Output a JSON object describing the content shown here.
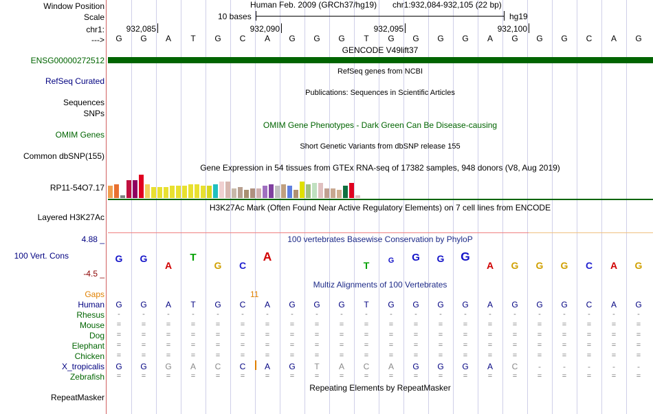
{
  "header": {
    "window_position_label": "Window Position",
    "scale_label": "Scale",
    "chr_label": "chr1:",
    "arrow_label": "--->",
    "assembly": "Human Feb. 2009 (GRCh37/hg19)",
    "position": "chr1:932,084-932,105 (22 bp)",
    "scale_text": "10 bases",
    "db": "hg19",
    "ticks": [
      "932,085",
      "932,090",
      "932,095",
      "932,100"
    ]
  },
  "sequence": [
    "G",
    "G",
    "A",
    "T",
    "G",
    "C",
    "A",
    "G",
    "G",
    "G",
    "T",
    "G",
    "G",
    "G",
    "G",
    "A",
    "G",
    "G",
    "G",
    "C",
    "A",
    "G"
  ],
  "tracks": {
    "gencode": {
      "title": "GENCODE V49lift37",
      "label": "ENSG00000272512",
      "color": "#006400"
    },
    "refseq": {
      "title": "RefSeq genes from NCBI",
      "label": "RefSeq Curated"
    },
    "publications": {
      "title": "Publications: Sequences in Scientific Articles",
      "label_1": "Sequences",
      "label_2": "SNPs"
    },
    "omim": {
      "title": "OMIM Gene Phenotypes - Dark Green Can Be Disease-causing",
      "label": "OMIM Genes"
    },
    "dbsnp": {
      "title": "Short Genetic Variants from dbSNP release 155",
      "label": "Common dbSNP(155)"
    },
    "gtex": {
      "title": "Gene Expression in 54 tissues from GTEx RNA-seq of 17382 samples, 948 donors (V8, Aug 2019)",
      "label": "RP11-54O7.17"
    },
    "h3k27ac": {
      "title": "H3K27Ac Mark (Often Found Near Active Regulatory Elements) on 7 cell lines from ENCODE",
      "label": "Layered H3K27Ac"
    },
    "conservation": {
      "title": "100 vertebrates Basewise Conservation by PhyloP",
      "label": "100 Vert. Cons",
      "max": "4.88 _",
      "min": "-4.5 _"
    },
    "multiz": {
      "title": "Multiz Alignments of 100 Vertebrates",
      "gaps_label": "Gaps",
      "gap_value": "11",
      "species": [
        "Human",
        "Rhesus",
        "Mouse",
        "Dog",
        "Elephant",
        "Chicken",
        "X_tropicalis",
        "Zebrafish"
      ],
      "x_tropicalis": [
        "G",
        "G",
        "G",
        "A",
        "C",
        "C",
        "A",
        "G",
        "T",
        "A",
        "C",
        "A",
        "G",
        "G",
        "G",
        "A",
        "C",
        "-",
        "-",
        "-",
        "-",
        "-"
      ]
    },
    "repeatmasker": {
      "title": "Repeating Elements by RepeatMasker",
      "label": "RepeatMasker"
    }
  },
  "colors": {
    "label_blue": "#000080",
    "label_green": "#006400",
    "gaps_orange": "#e08000",
    "cons_blue": "#1414c8",
    "separator": "#d06060"
  }
}
